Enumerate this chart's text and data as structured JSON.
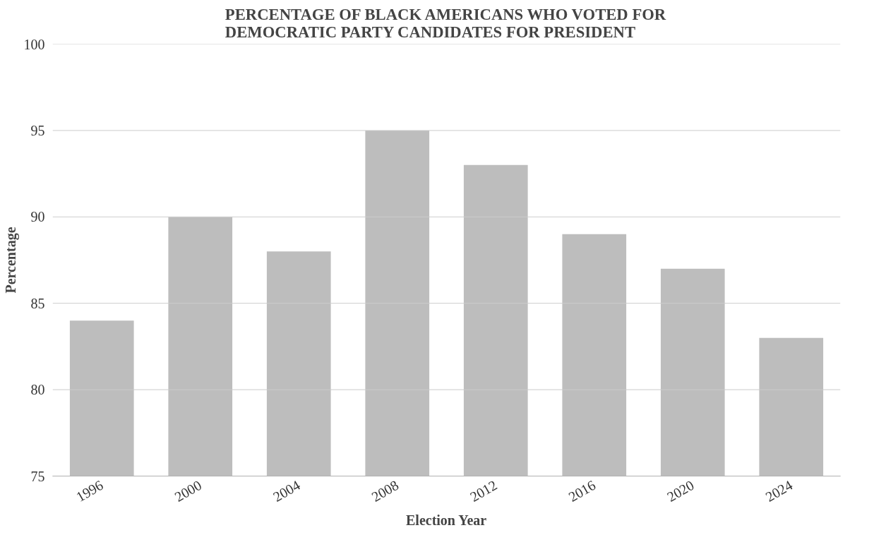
{
  "chart_data": {
    "type": "bar",
    "title": "PERCENTAGE OF BLACK AMERICANS WHO VOTED FOR\nDEMOCRATIC PARTY CANDIDATES FOR PRESIDENT",
    "xlabel": "Election Year",
    "ylabel": "Percentage",
    "categories": [
      "1996",
      "2000",
      "2004",
      "2008",
      "2012",
      "2016",
      "2020",
      "2024"
    ],
    "values": [
      84,
      90,
      88,
      95,
      93,
      89,
      87,
      83
    ],
    "color": "#bdbdbd",
    "ylim": [
      75,
      100
    ],
    "yticks": [
      75,
      80,
      85,
      90,
      95,
      100
    ],
    "grid": "y"
  }
}
